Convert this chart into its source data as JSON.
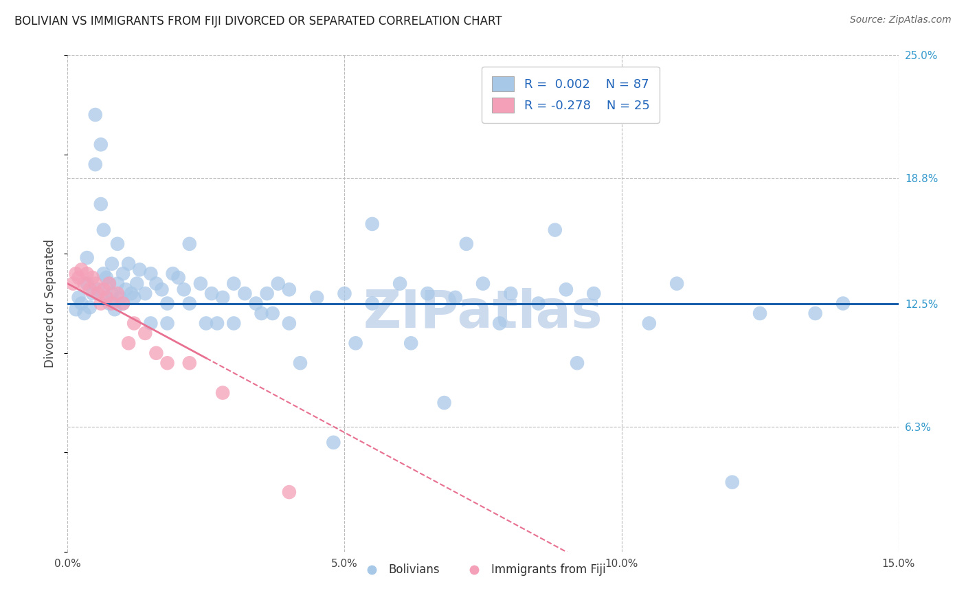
{
  "title": "BOLIVIAN VS IMMIGRANTS FROM FIJI DIVORCED OR SEPARATED CORRELATION CHART",
  "source": "Source: ZipAtlas.com",
  "ylabel": "Divorced or Separated",
  "xlim": [
    0.0,
    15.0
  ],
  "ylim": [
    0.0,
    25.0
  ],
  "xticks": [
    0.0,
    5.0,
    10.0,
    15.0
  ],
  "xtick_labels": [
    "0.0%",
    "5.0%",
    "10.0%",
    "15.0%"
  ],
  "yticks": [
    6.3,
    12.5,
    18.8,
    25.0
  ],
  "ytick_labels": [
    "6.3%",
    "12.5%",
    "18.8%",
    "25.0%"
  ],
  "legend_r1": "R =  0.002",
  "legend_n1": "N = 87",
  "legend_r2": "R = -0.278",
  "legend_n2": "N = 25",
  "color_blue": "#a8c8e8",
  "color_pink": "#f4a0b8",
  "trend_blue_color": "#1a5faa",
  "trend_pink_color": "#e87090",
  "watermark": "ZIPatlas",
  "watermark_color": "#ccdaee",
  "background_color": "#ffffff",
  "grid_color": "#bbbbbb",
  "legend_label1": "Bolivians",
  "legend_label2": "Immigrants from Fiji",
  "blue_x": [
    0.15,
    0.2,
    0.25,
    0.3,
    0.35,
    0.35,
    0.4,
    0.45,
    0.5,
    0.5,
    0.55,
    0.6,
    0.6,
    0.65,
    0.65,
    0.7,
    0.7,
    0.75,
    0.75,
    0.8,
    0.8,
    0.85,
    0.9,
    0.9,
    0.95,
    1.0,
    1.0,
    1.05,
    1.1,
    1.15,
    1.2,
    1.25,
    1.3,
    1.4,
    1.5,
    1.6,
    1.7,
    1.8,
    1.9,
    2.0,
    2.1,
    2.2,
    2.4,
    2.6,
    2.8,
    3.0,
    3.2,
    3.4,
    3.6,
    3.8,
    4.0,
    4.5,
    5.0,
    5.5,
    6.0,
    6.5,
    7.0,
    7.5,
    8.0,
    8.5,
    9.0,
    9.5,
    5.5,
    7.2,
    8.8,
    11.0,
    12.5,
    14.0,
    4.2,
    6.8,
    2.5,
    3.5,
    1.5,
    2.2,
    3.0,
    4.0,
    5.2,
    6.2,
    7.8,
    9.2,
    10.5,
    12.0,
    13.5,
    1.8,
    2.7,
    3.7,
    4.8
  ],
  "blue_y": [
    12.2,
    12.8,
    12.5,
    12.0,
    13.5,
    14.8,
    12.3,
    13.0,
    22.0,
    19.5,
    13.2,
    20.5,
    17.5,
    16.2,
    14.0,
    13.8,
    12.8,
    13.5,
    12.5,
    14.5,
    13.0,
    12.2,
    15.5,
    13.5,
    12.8,
    14.0,
    12.5,
    13.2,
    14.5,
    13.0,
    12.8,
    13.5,
    14.2,
    13.0,
    14.0,
    13.5,
    13.2,
    12.5,
    14.0,
    13.8,
    13.2,
    15.5,
    13.5,
    13.0,
    12.8,
    13.5,
    13.0,
    12.5,
    13.0,
    13.5,
    13.2,
    12.8,
    13.0,
    12.5,
    13.5,
    13.0,
    12.8,
    13.5,
    13.0,
    12.5,
    13.2,
    13.0,
    16.5,
    15.5,
    16.2,
    13.5,
    12.0,
    12.5,
    9.5,
    7.5,
    11.5,
    12.0,
    11.5,
    12.5,
    11.5,
    11.5,
    10.5,
    10.5,
    11.5,
    9.5,
    11.5,
    3.5,
    12.0,
    11.5,
    11.5,
    12.0,
    5.5
  ],
  "pink_x": [
    0.1,
    0.15,
    0.2,
    0.25,
    0.3,
    0.35,
    0.4,
    0.45,
    0.5,
    0.55,
    0.6,
    0.65,
    0.7,
    0.75,
    0.8,
    0.9,
    1.0,
    1.1,
    1.2,
    1.4,
    1.6,
    1.8,
    2.2,
    2.8,
    4.0
  ],
  "pink_y": [
    13.5,
    14.0,
    13.8,
    14.2,
    13.5,
    14.0,
    13.2,
    13.8,
    13.5,
    13.0,
    12.5,
    13.2,
    12.8,
    13.5,
    12.5,
    13.0,
    12.5,
    10.5,
    11.5,
    11.0,
    10.0,
    9.5,
    9.5,
    8.0,
    3.0
  ],
  "blue_trend_y_start": 12.5,
  "blue_trend_y_end": 12.5,
  "pink_solid_x_end": 2.5,
  "pink_trend_slope": -1.5
}
